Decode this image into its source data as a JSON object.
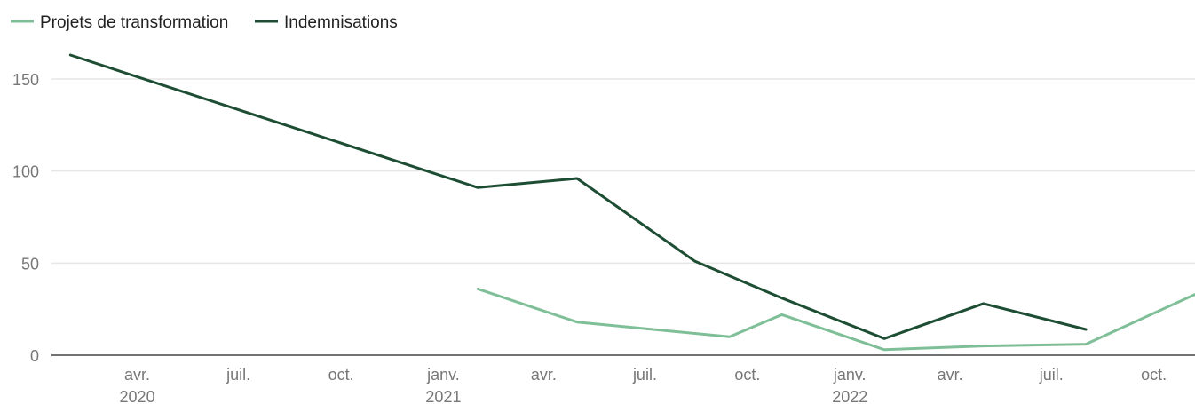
{
  "chart_data": {
    "type": "line",
    "title": "",
    "xlabel": "",
    "ylabel": "",
    "ylim": [
      0,
      170
    ],
    "yticks": [
      0,
      50,
      100,
      150
    ],
    "xlim": [
      "2020-01-15",
      "2022-11-07"
    ],
    "grid": true,
    "legend_position": "top-left",
    "x_ticks": [
      {
        "date": "2020-04-01",
        "label": "avr.",
        "sublabel": "2020"
      },
      {
        "date": "2020-07-01",
        "label": "juil.",
        "sublabel": ""
      },
      {
        "date": "2020-10-01",
        "label": "oct.",
        "sublabel": ""
      },
      {
        "date": "2021-01-01",
        "label": "janv.",
        "sublabel": "2021"
      },
      {
        "date": "2021-04-01",
        "label": "avr.",
        "sublabel": ""
      },
      {
        "date": "2021-07-01",
        "label": "juil.",
        "sublabel": ""
      },
      {
        "date": "2021-10-01",
        "label": "oct.",
        "sublabel": ""
      },
      {
        "date": "2022-01-01",
        "label": "janv.",
        "sublabel": "2022"
      },
      {
        "date": "2022-04-01",
        "label": "avr.",
        "sublabel": ""
      },
      {
        "date": "2022-07-01",
        "label": "juil.",
        "sublabel": ""
      },
      {
        "date": "2022-10-01",
        "label": "oct.",
        "sublabel": ""
      }
    ],
    "series": [
      {
        "name": "Projets de transformation",
        "color": "#7fbf98",
        "points": [
          {
            "x": "2021-02-01",
            "y": 36
          },
          {
            "x": "2021-05-01",
            "y": 18
          },
          {
            "x": "2021-09-15",
            "y": 10
          },
          {
            "x": "2021-11-01",
            "y": 22
          },
          {
            "x": "2022-02-01",
            "y": 3
          },
          {
            "x": "2022-05-01",
            "y": 5
          },
          {
            "x": "2022-08-01",
            "y": 6
          },
          {
            "x": "2022-11-07",
            "y": 33
          }
        ]
      },
      {
        "name": "Indemnisations",
        "color": "#1d4d33",
        "points": [
          {
            "x": "2020-02-01",
            "y": 163
          },
          {
            "x": "2021-02-01",
            "y": 91
          },
          {
            "x": "2021-05-01",
            "y": 96
          },
          {
            "x": "2021-08-15",
            "y": 51
          },
          {
            "x": "2021-11-01",
            "y": 31
          },
          {
            "x": "2022-02-01",
            "y": 9
          },
          {
            "x": "2022-05-01",
            "y": 28
          },
          {
            "x": "2022-08-01",
            "y": 14
          }
        ]
      }
    ]
  }
}
